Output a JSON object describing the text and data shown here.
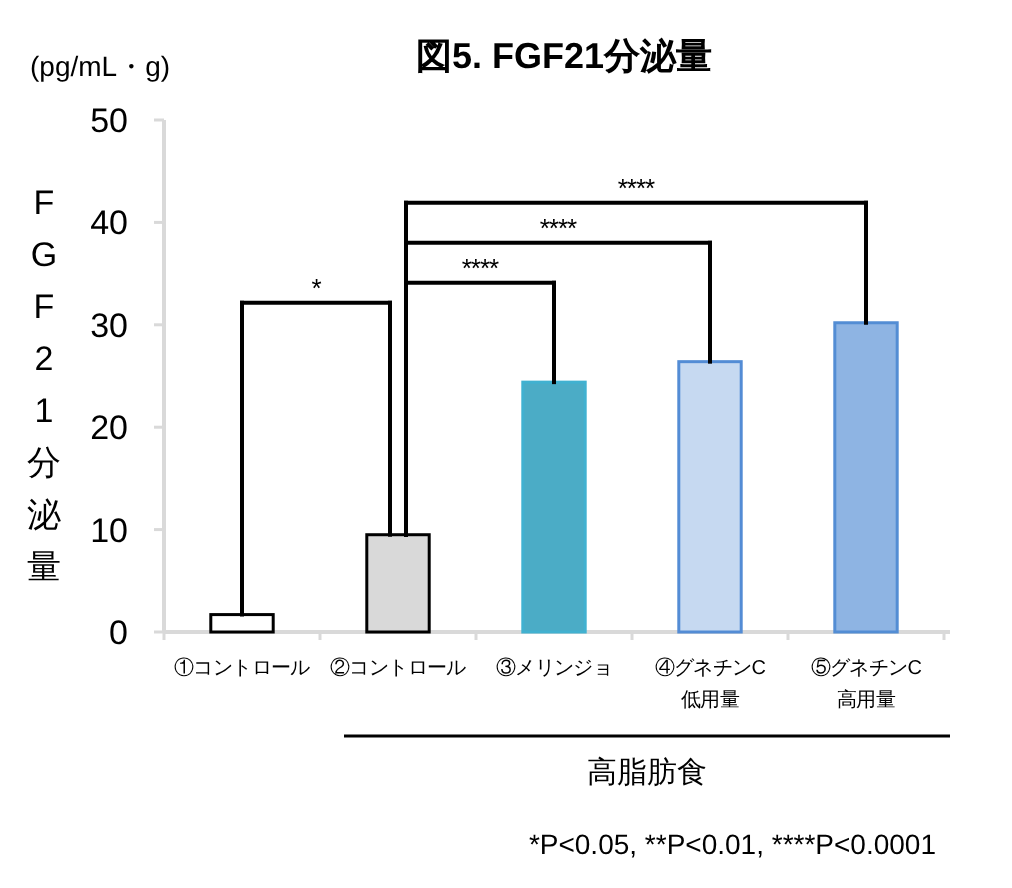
{
  "chart_data": {
    "type": "bar",
    "title": "図5. FGF21分泌量",
    "ylabel": "FGF21分泌量",
    "categories": [
      "①コントロール",
      "②コントロール",
      "③メリンジョ",
      "④グネチンC\n低用量",
      "⑤グネチンC\n高用量"
    ],
    "values": [
      1.7,
      9.5,
      24.4,
      26.4,
      30.2
    ],
    "colors": [
      "#ffffff",
      "#d9d9d9",
      "#4bacc6",
      "#c6d9f1",
      "#8eb4e3"
    ],
    "ylim": [
      0,
      50
    ],
    "yticks": [
      0,
      10,
      20,
      30,
      40,
      50
    ],
    "annotations": [
      "(pg/mL・g)",
      "*",
      "****",
      "****",
      "****",
      "高脂肪食",
      "*P<0.05, **P<0.01, ****P<0.0001"
    ]
  }
}
